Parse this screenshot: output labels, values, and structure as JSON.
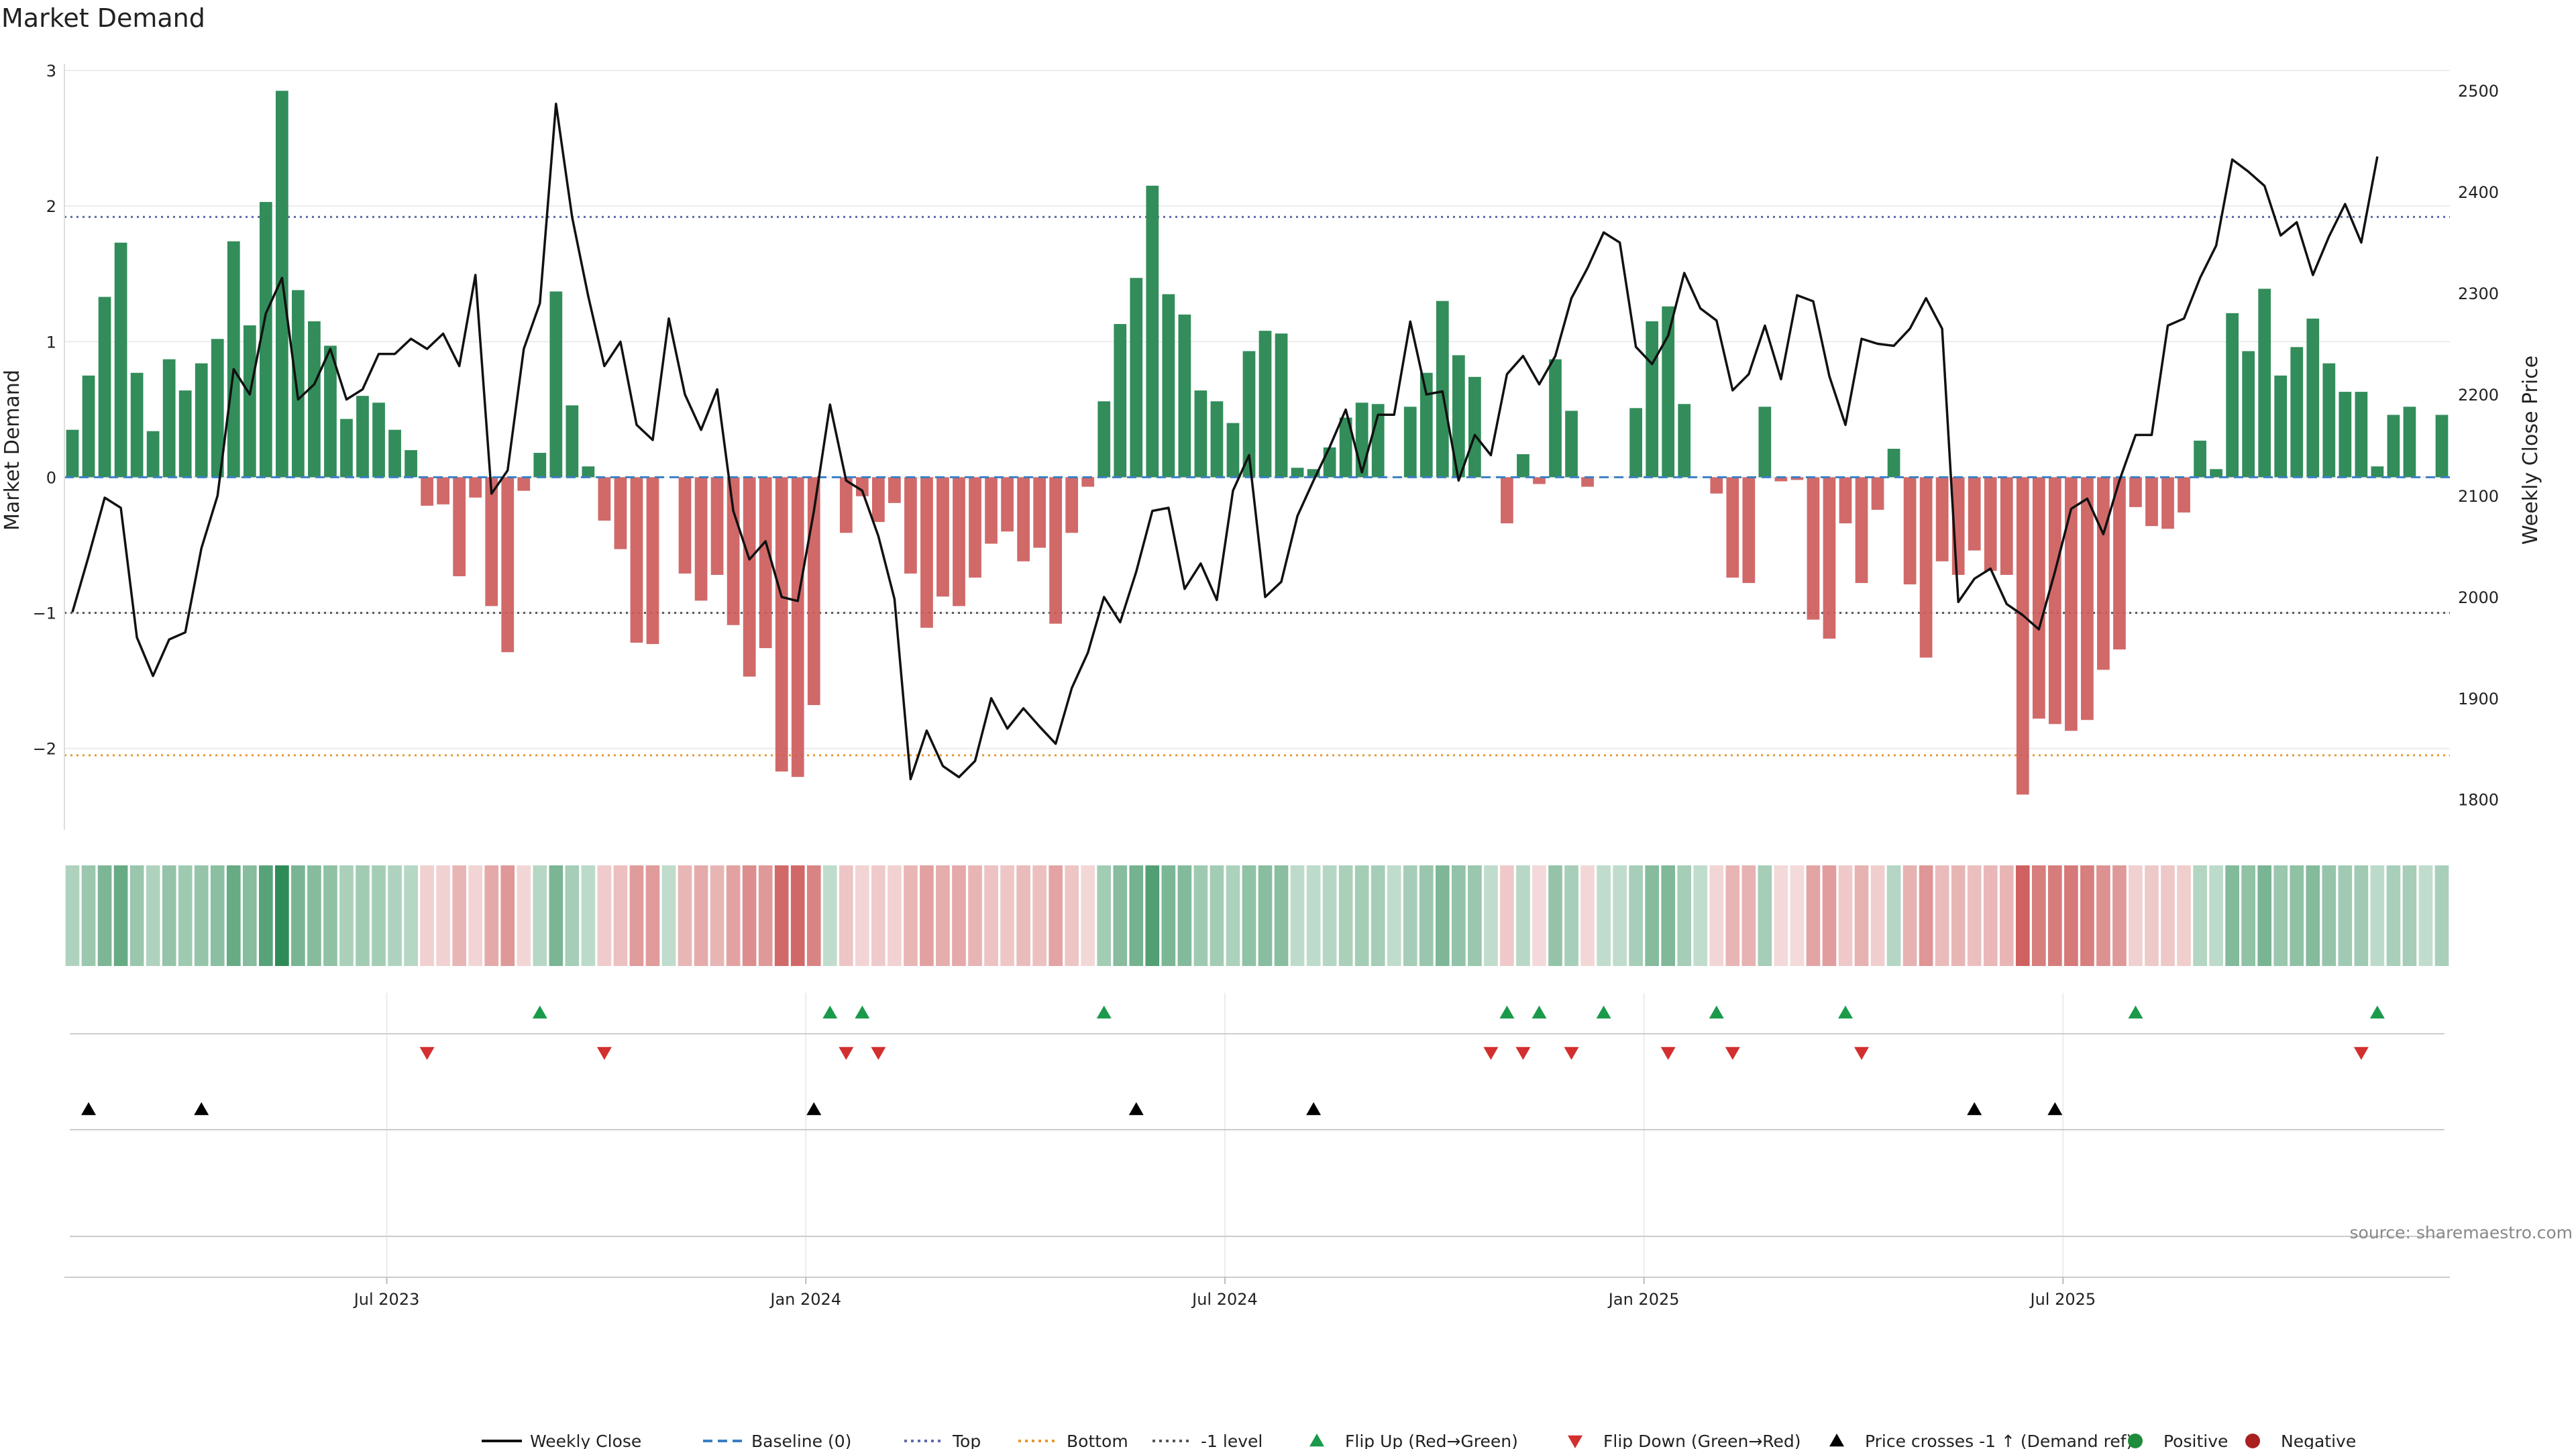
{
  "chart_data": {
    "type": "bar",
    "title": "Market Demand",
    "ylabel": "Market Demand",
    "y2label": "Weekly Close Price",
    "ylim": [
      -2.6,
      3
    ],
    "y2lim": [
      1770,
      2520
    ],
    "yticks": [
      3,
      2,
      1,
      0,
      -1,
      -2
    ],
    "ytick_labels": [
      "3",
      "2",
      "1",
      "0",
      "−1",
      "−2"
    ],
    "y2ticks": [
      2500,
      2400,
      2300,
      2200,
      2100,
      2000,
      1900,
      1800
    ],
    "xticks": [
      {
        "label": "Jul 2023",
        "index": 20
      },
      {
        "label": "Jan 2024",
        "index": 46
      },
      {
        "label": "Jul 2024",
        "index": 72
      },
      {
        "label": "Jan 2025",
        "index": 98
      },
      {
        "label": "Jul 2025",
        "index": 124
      }
    ],
    "reference_lines": [
      {
        "name": "Top",
        "value": 1.92,
        "color": "#5b6aa8",
        "dash": "3,6"
      },
      {
        "name": "-1 level",
        "value": -1.0,
        "color": "#555555",
        "dash": "3,6"
      },
      {
        "name": "Bottom",
        "value": -2.05,
        "color": "#e8962e",
        "dash": "3,6"
      }
    ],
    "colors": {
      "positive": "#2e8b57",
      "negative": "#cd5c5c",
      "close": "#111111",
      "baseline": "#3a7fc4",
      "flip_up": "#1a9a4a",
      "flip_down": "#d32f2f",
      "cross": "#000000",
      "positive_dot": "#1e8c3a",
      "negative_dot": "#a82020"
    },
    "demand": [
      0.35,
      0.75,
      1.33,
      1.73,
      0.77,
      0.34,
      0.87,
      0.64,
      0.84,
      1.02,
      1.74,
      1.12,
      2.03,
      2.85,
      1.38,
      1.15,
      0.97,
      0.43,
      0.6,
      0.55,
      0.35,
      0.2,
      -0.21,
      -0.2,
      -0.73,
      -0.15,
      -0.95,
      -1.29,
      -0.1,
      0.18,
      1.37,
      0.53,
      0.08,
      -0.32,
      -0.53,
      -1.22,
      -1.23,
      0,
      -0.71,
      -0.91,
      -0.72,
      -1.09,
      -1.47,
      -1.26,
      -2.17,
      -2.21,
      -1.68,
      0,
      -0.41,
      -0.14,
      -0.33,
      -0.19,
      -0.71,
      -1.11,
      -0.88,
      -0.95,
      -0.74,
      -0.49,
      -0.4,
      -0.62,
      -0.52,
      -1.08,
      -0.41,
      -0.07,
      0.56,
      1.13,
      1.47,
      2.15,
      1.35,
      1.2,
      0.64,
      0.56,
      0.4,
      0.93,
      1.08,
      1.06,
      0.07,
      0.06,
      0.22,
      0.44,
      0.55,
      0.54,
      0,
      0.52,
      0.77,
      1.3,
      0.9,
      0.74,
      0,
      -0.34,
      0.17,
      -0.05,
      0.87,
      0.49,
      -0.07,
      0,
      0,
      0.51,
      1.15,
      1.26,
      0.54,
      0,
      -0.12,
      -0.74,
      -0.78,
      0.52,
      -0.03,
      -0.02,
      -1.05,
      -1.19,
      -0.34,
      -0.78,
      -0.24,
      0.21,
      -0.79,
      -1.33,
      -0.62,
      -0.72,
      -0.54,
      -0.69,
      -0.72,
      -2.34,
      -1.78,
      -1.82,
      -1.87,
      -1.79,
      -1.42,
      -1.27,
      -0.22,
      -0.36,
      -0.38,
      -0.26,
      0.27,
      0.06,
      1.21,
      0.93,
      1.39,
      0.75,
      0.96,
      1.17,
      0.84,
      0.63,
      0.63,
      0.08,
      0.46,
      0.52,
      0,
      0.46
    ],
    "weekly_close": [
      1985,
      2040,
      2098,
      2088,
      1960,
      1922,
      1958,
      1965,
      2048,
      2100,
      2225,
      2200,
      2280,
      2315,
      2195,
      2210,
      2245,
      2195,
      2205,
      2240,
      2240,
      2255,
      2245,
      2260,
      2228,
      2318,
      2102,
      2125,
      2245,
      2290,
      2487,
      2375,
      2297,
      2228,
      2252,
      2170,
      2155,
      2275,
      2200,
      2165,
      2205,
      2085,
      2037,
      2055,
      2000,
      1996,
      2085,
      2190,
      2115,
      2105,
      2060,
      1998,
      1820,
      1868,
      1833,
      1822,
      1838,
      1900,
      1870,
      1890,
      1872,
      1855,
      1910,
      1945,
      2000,
      1975,
      2025,
      2085,
      2088,
      2008,
      2033,
      1997,
      2105,
      2140,
      2000,
      2015,
      2080,
      2115,
      2148,
      2185,
      2123,
      2180,
      2180,
      2272,
      2200,
      2203,
      2115,
      2160,
      2140,
      2220,
      2238,
      2210,
      2238,
      2295,
      2325,
      2360,
      2350,
      2247,
      2230,
      2258,
      2320,
      2285,
      2273,
      2204,
      2220,
      2268,
      2215,
      2298,
      2292,
      2218,
      2170,
      2255,
      2250,
      2248,
      2265,
      2295,
      2265,
      1995,
      2018,
      2028,
      1993,
      1982,
      1968,
      2025,
      2087,
      2097,
      2062,
      2115,
      2160,
      2160,
      2268,
      2275,
      2315,
      2347,
      2432,
      2420,
      2406,
      2357,
      2370,
      2318,
      2356,
      2388,
      2350,
      2435
    ]
  },
  "markers": {
    "flip_up_index": [
      29,
      47,
      49,
      64,
      89,
      91,
      95,
      102,
      110,
      128,
      143
    ],
    "flip_down_index": [
      22,
      33,
      48,
      50,
      88,
      90,
      93,
      99,
      103,
      111,
      142
    ],
    "cross_index": [
      1,
      8,
      46,
      66,
      77,
      118,
      123
    ]
  },
  "legend": [
    {
      "key": "close",
      "label": "Weekly Close"
    },
    {
      "key": "baseline",
      "label": "Baseline (0)"
    },
    {
      "key": "top",
      "label": "Top"
    },
    {
      "key": "bottom",
      "label": "Bottom"
    },
    {
      "key": "minus1",
      "label": "-1 level"
    },
    {
      "key": "flip_up",
      "label": "Flip Up (Red→Green)"
    },
    {
      "key": "flip_down",
      "label": "Flip Down (Green→Red)"
    },
    {
      "key": "cross",
      "label": "Price crosses -1 ↑ (Demand ref)"
    },
    {
      "key": "positive",
      "label": "Positive"
    },
    {
      "key": "negative",
      "label": "Negative"
    }
  ],
  "source": "source: sharemaestro.com"
}
